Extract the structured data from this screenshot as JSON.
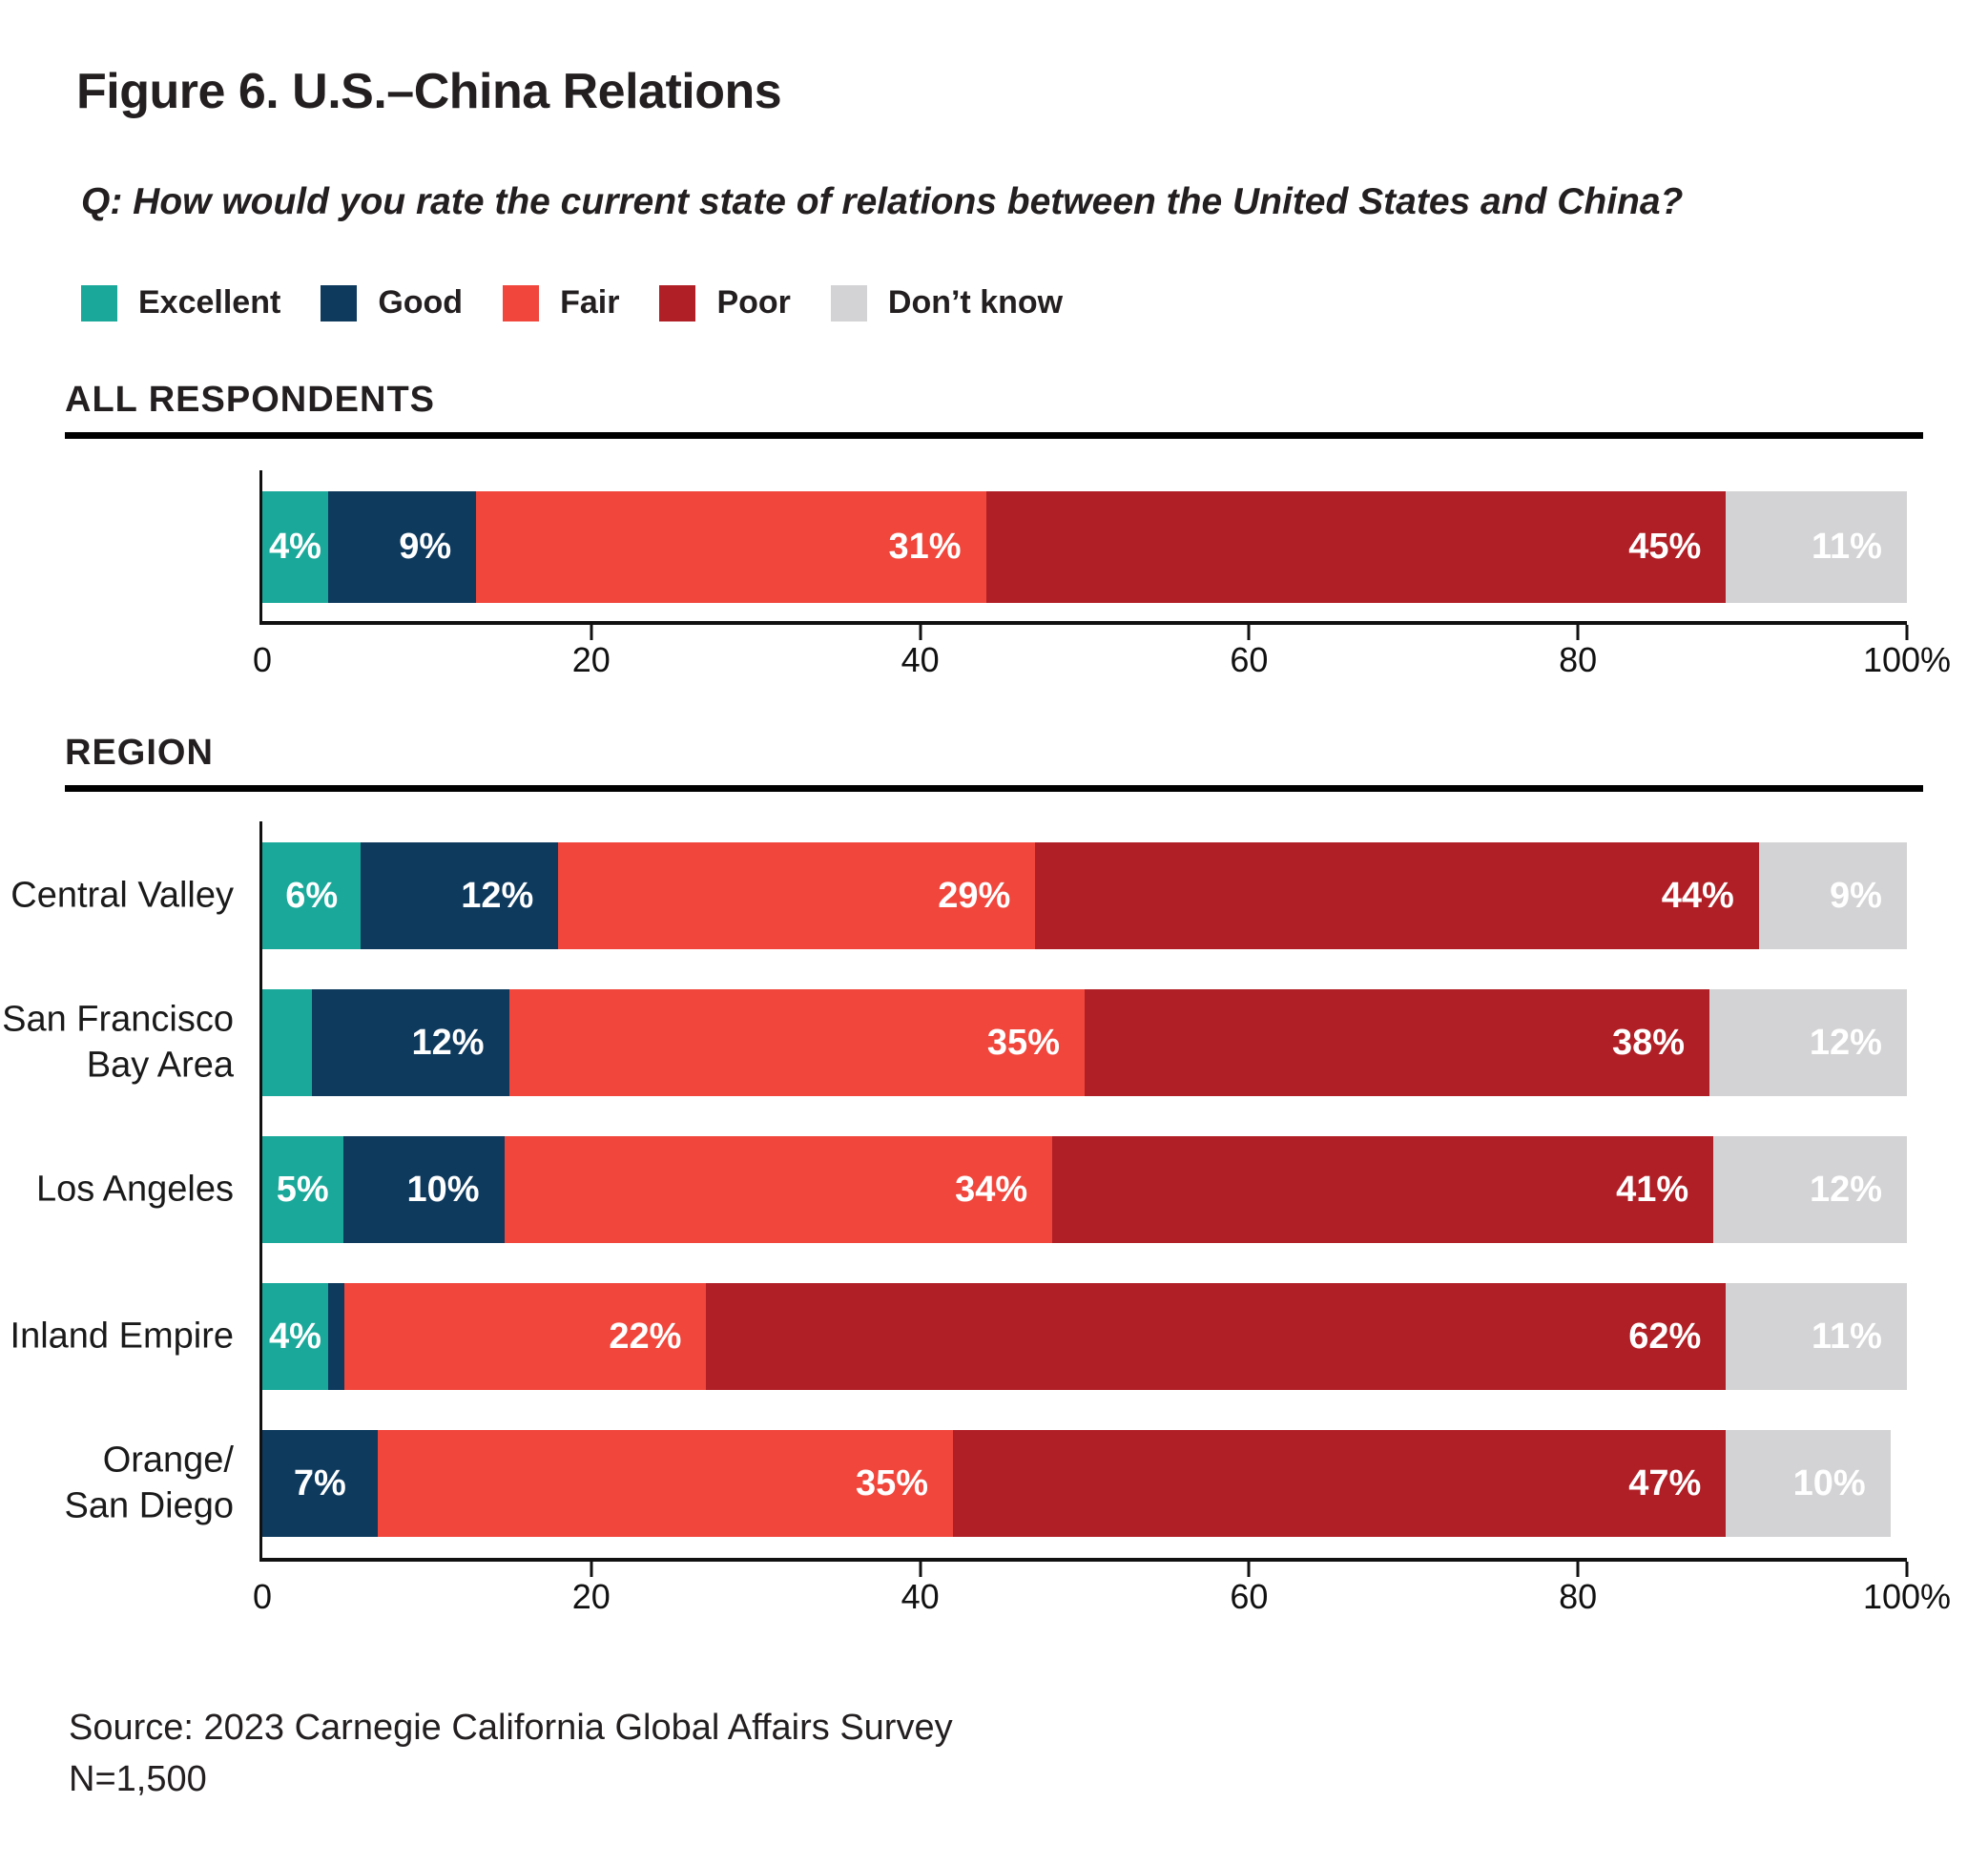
{
  "chart_data": {
    "type": "bar",
    "orientation": "horizontal",
    "stacked": true,
    "title": "Figure 6. U.S.–China Relations",
    "question": "Q: How would you rate the current state of relations between the United States and China?",
    "categories": [
      "Excellent",
      "Good",
      "Fair",
      "Poor",
      "Don’t know"
    ],
    "colors": {
      "excellent": "#1AA89A",
      "good": "#0E3A5E",
      "fair": "#F0463C",
      "poor": "#B11F26",
      "dont_know": "#D3D3D5",
      "text": "#231f20",
      "axis": "#111111"
    },
    "xlim": [
      0,
      100
    ],
    "xticks": [
      0,
      20,
      40,
      60,
      80,
      100
    ],
    "xtick_labels": [
      "0",
      "20",
      "40",
      "60",
      "80",
      "100%"
    ],
    "grid": false,
    "legend_position": "top",
    "sections": [
      {
        "heading": "ALL RESPONDENTS",
        "rows": [
          {
            "label": "",
            "values": [
              4,
              9,
              31,
              45,
              11
            ],
            "segment_labels": [
              "4%",
              "9%",
              "31%",
              "45%",
              "11%"
            ]
          }
        ]
      },
      {
        "heading": "REGION",
        "rows": [
          {
            "label": "Central Valley",
            "values": [
              6,
              12,
              29,
              44,
              9
            ],
            "segment_labels": [
              "6%",
              "12%",
              "29%",
              "44%",
              "9%"
            ]
          },
          {
            "label": "San Francisco\nBay Area",
            "values": [
              3,
              12,
              35,
              38,
              12
            ],
            "segment_labels": [
              "",
              "12%",
              "35%",
              "38%",
              "12%"
            ]
          },
          {
            "label": "Los Angeles",
            "values": [
              5,
              10,
              34,
              41,
              12
            ],
            "segment_labels": [
              "5%",
              "10%",
              "34%",
              "41%",
              "12%"
            ]
          },
          {
            "label": "Inland Empire",
            "values": [
              4,
              1,
              22,
              62,
              11
            ],
            "segment_labels": [
              "4%",
              "",
              "22%",
              "62%",
              "11%"
            ]
          },
          {
            "label": "Orange/\nSan Diego",
            "values": [
              0,
              7,
              35,
              47,
              10
            ],
            "segment_labels": [
              "",
              "7%",
              "35%",
              "47%",
              "10%"
            ]
          }
        ]
      }
    ],
    "source": "Source: 2023 Carnegie California Global Affairs Survey",
    "n": "N=1,500"
  }
}
